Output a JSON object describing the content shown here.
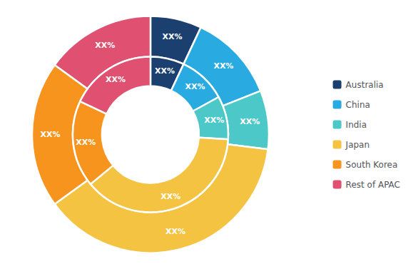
{
  "chart_data": {
    "type": "pie",
    "categories": [
      "Australia",
      "China",
      "India",
      "Japan",
      "South Korea",
      "Rest of APAC"
    ],
    "colors": [
      "#1B3F6E",
      "#29ABE2",
      "#4DC8C8",
      "#F5C342",
      "#F7941D",
      "#E05070"
    ],
    "series": [
      {
        "values": [
          7,
          12,
          8,
          38,
          20,
          15
        ],
        "value_labels": [
          "XX%",
          "XX%",
          "XX%",
          "XX%",
          "XX%",
          "XX%"
        ]
      },
      {
        "values": [
          7,
          10,
          9,
          38,
          18,
          18
        ],
        "value_labels": [
          "XX%",
          "XX%",
          "XX%",
          "XX%",
          "XX%",
          "XX%"
        ]
      }
    ],
    "data_labels": true,
    "legend": "right"
  }
}
